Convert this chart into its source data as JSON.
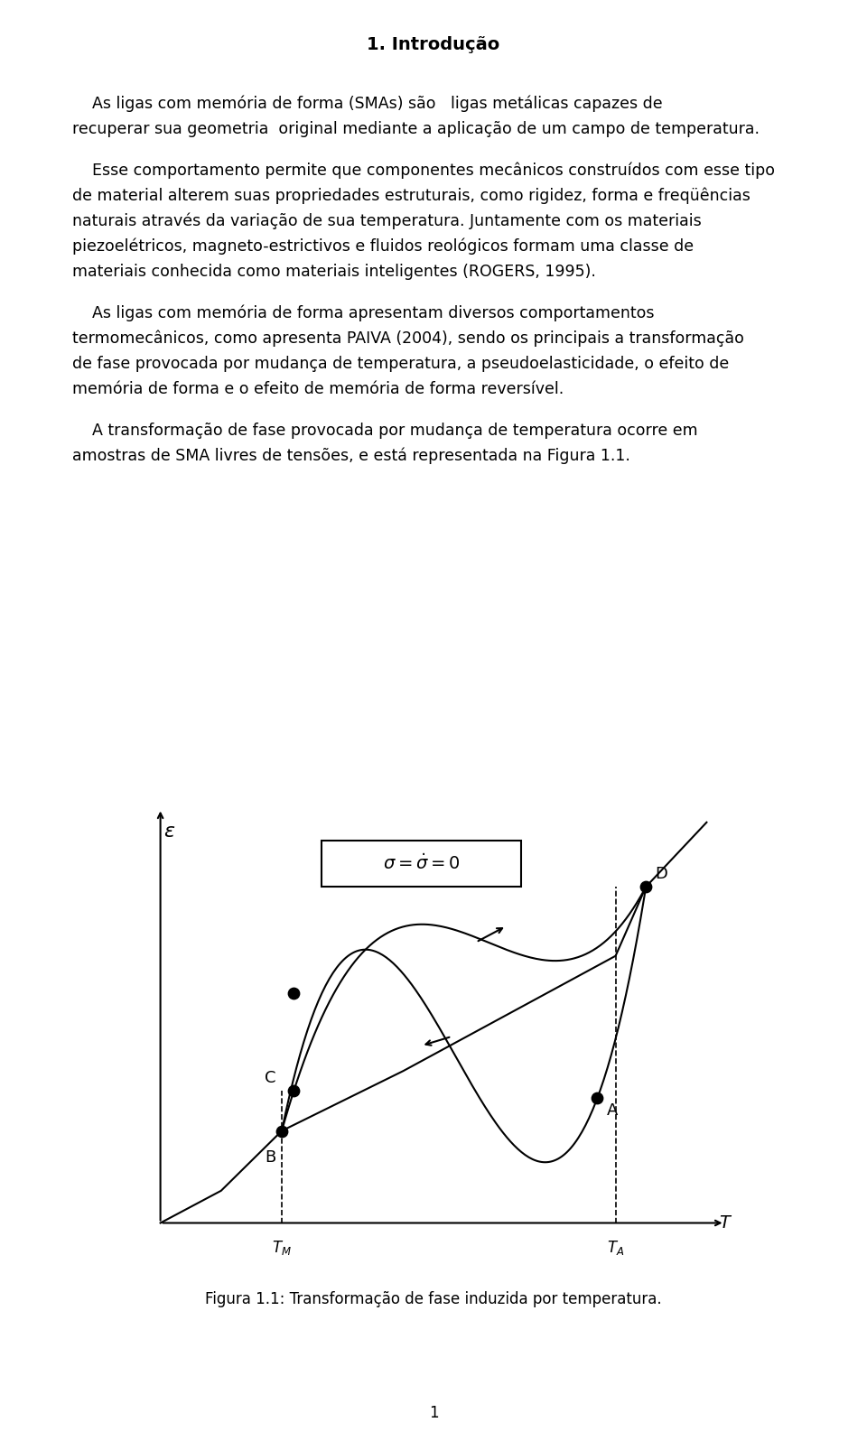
{
  "title": "1. Introdução",
  "paragraphs": [
    "    As ligas com memória de forma (SMAs) são   ligas metálicas capazes de recuperar sua geometria  original mediante a aplicação de um campo de temperatura.",
    "    Esse comportamento permite que componentes mecânicos construídos com esse tipo de material alterem suas propriedades estruturais, como rigidez, forma e freqüências naturais através da variação de sua temperatura. Juntamente com os materiais piezoelétricos, magneto-estrictivos e fluidos reológicos formam uma classe de materiais conhecida como materiais inteligentes (ROGERS, 1995).",
    "    As ligas com memória de forma apresentam diversos comportamentos termomecânicos, como apresenta PAIVA (2004), sendo os principais a transformação de fase provocada por mudança de temperatura, a pseudoelasticidade, o efeito de memória de forma e o efeito de memória de forma reversível.",
    "    A transformação de fase provocada por mudança de temperatura ocorre em amostras de SMA livres de tensões, e está representada na Figura 1.1."
  ],
  "fig_caption": "Figura 1.1: Transformação de fase induzida por temperatura.",
  "page_number": "1",
  "background_color": "#ffffff",
  "text_color": "#000000"
}
